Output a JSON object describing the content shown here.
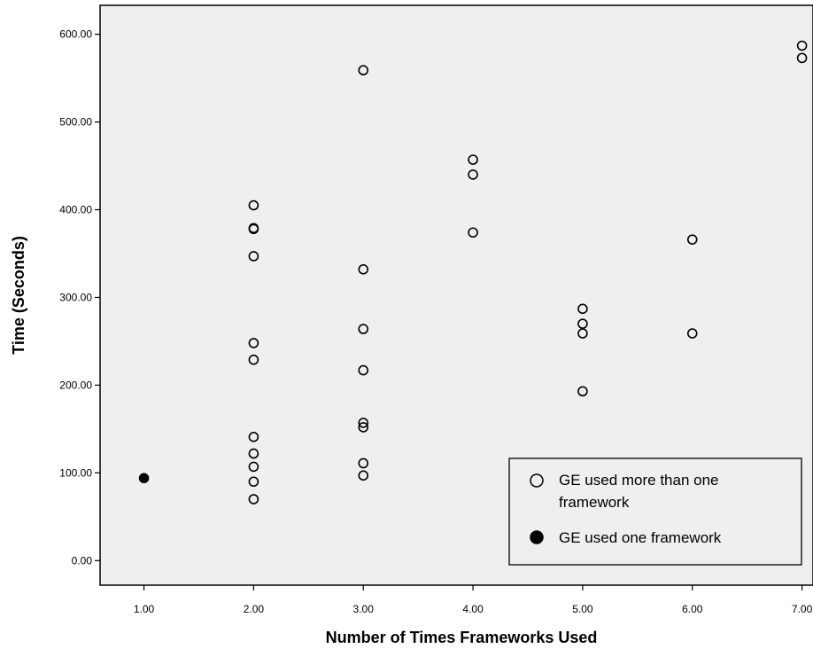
{
  "chart_data": {
    "type": "scatter",
    "xlabel": "Number of Times Frameworks Used",
    "ylabel": "Time (Seconds)",
    "xlim": [
      0.6,
      7.1
    ],
    "ylim": [
      -28,
      633
    ],
    "x_ticks": [
      1,
      2,
      3,
      4,
      5,
      6,
      7
    ],
    "x_tick_labels": [
      "1.00",
      "2.00",
      "3.00",
      "4.00",
      "5.00",
      "6.00",
      "7.00"
    ],
    "y_ticks": [
      0,
      100,
      200,
      300,
      400,
      500,
      600
    ],
    "y_tick_labels": [
      "0.00",
      "100.00",
      "200.00",
      "300.00",
      "400.00",
      "500.00",
      "600.00"
    ],
    "grid": false,
    "legend_position": "bottom-right",
    "background_color": "#efefef",
    "series": [
      {
        "name": "GE used more than one framework",
        "marker": "open-circle",
        "color": "#000000",
        "points": [
          [
            2,
            405
          ],
          [
            2,
            379
          ],
          [
            2,
            378
          ],
          [
            2,
            347
          ],
          [
            2,
            248
          ],
          [
            2,
            229
          ],
          [
            2,
            141
          ],
          [
            2,
            122
          ],
          [
            2,
            107
          ],
          [
            2,
            90
          ],
          [
            2,
            70
          ],
          [
            3,
            559
          ],
          [
            3,
            332
          ],
          [
            3,
            264
          ],
          [
            3,
            217
          ],
          [
            3,
            157
          ],
          [
            3,
            152
          ],
          [
            3,
            111
          ],
          [
            3,
            97
          ],
          [
            4,
            457
          ],
          [
            4,
            440
          ],
          [
            4,
            374
          ],
          [
            5,
            287
          ],
          [
            5,
            270
          ],
          [
            5,
            259
          ],
          [
            5,
            193
          ],
          [
            6,
            366
          ],
          [
            6,
            259
          ],
          [
            7,
            587
          ],
          [
            7,
            573
          ]
        ]
      },
      {
        "name": "GE used one framework",
        "marker": "filled-circle",
        "color": "#000000",
        "points": [
          [
            1,
            94
          ]
        ]
      }
    ]
  }
}
